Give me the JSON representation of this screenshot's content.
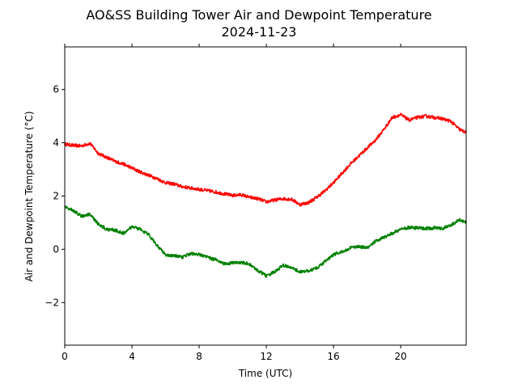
{
  "chart_data": {
    "type": "line",
    "title": "AO&SS Building Tower Air and Dewpoint Temperature",
    "subtitle": "2024-11-23",
    "xlabel": "Time (UTC)",
    "ylabel": "Air and Dewpoint Temperature (°C)",
    "xlim": [
      0,
      23.9
    ],
    "ylim": [
      -3.6,
      7.6
    ],
    "xticks": [
      0,
      4,
      8,
      12,
      16,
      20
    ],
    "yticks": [
      -2,
      0,
      2,
      4,
      6
    ],
    "grid": false,
    "legend": "none",
    "series": [
      {
        "color": "#ff0000",
        "x": [
          0,
          0.5,
          1,
          1.5,
          2,
          2.5,
          3,
          3.5,
          4,
          4.5,
          5,
          5.5,
          6,
          6.5,
          7,
          7.5,
          8,
          8.5,
          9,
          9.5,
          10,
          10.5,
          11,
          11.5,
          12,
          12.5,
          13,
          13.5,
          14,
          14.5,
          15,
          15.5,
          16,
          16.5,
          17,
          17.5,
          18,
          18.5,
          19,
          19.5,
          20,
          20.5,
          21,
          21.5,
          22,
          22.5,
          23,
          23.5,
          23.9
        ],
        "values": [
          3.95,
          3.9,
          3.88,
          3.98,
          3.6,
          3.45,
          3.3,
          3.2,
          3.05,
          2.9,
          2.78,
          2.65,
          2.5,
          2.45,
          2.35,
          2.3,
          2.25,
          2.2,
          2.15,
          2.08,
          2.02,
          2.05,
          1.95,
          1.9,
          1.78,
          1.85,
          1.9,
          1.88,
          1.68,
          1.75,
          1.95,
          2.2,
          2.5,
          2.85,
          3.2,
          3.5,
          3.8,
          4.1,
          4.5,
          4.95,
          5.05,
          4.85,
          4.95,
          5.0,
          4.95,
          4.9,
          4.8,
          4.5,
          4.38
        ]
      },
      {
        "color": "#008000",
        "x": [
          0,
          0.5,
          1,
          1.5,
          2,
          2.5,
          3,
          3.5,
          4,
          4.5,
          5,
          5.5,
          6,
          6.5,
          7,
          7.5,
          8,
          8.5,
          9,
          9.5,
          10,
          10.5,
          11,
          11.5,
          12,
          12.5,
          13,
          13.5,
          14,
          14.5,
          15,
          15.5,
          16,
          16.5,
          17,
          17.5,
          18,
          18.5,
          19,
          19.5,
          20,
          20.5,
          21,
          21.5,
          22,
          22.5,
          23,
          23.5,
          23.9
        ],
        "values": [
          1.6,
          1.45,
          1.25,
          1.3,
          0.95,
          0.75,
          0.72,
          0.6,
          0.85,
          0.75,
          0.55,
          0.15,
          -0.2,
          -0.25,
          -0.3,
          -0.15,
          -0.2,
          -0.3,
          -0.4,
          -0.55,
          -0.5,
          -0.5,
          -0.55,
          -0.8,
          -1.0,
          -0.85,
          -0.6,
          -0.7,
          -0.85,
          -0.82,
          -0.7,
          -0.45,
          -0.2,
          -0.1,
          0.05,
          0.1,
          0.05,
          0.3,
          0.45,
          0.6,
          0.75,
          0.82,
          0.8,
          0.78,
          0.8,
          0.78,
          0.9,
          1.12,
          1.0
        ]
      }
    ]
  }
}
